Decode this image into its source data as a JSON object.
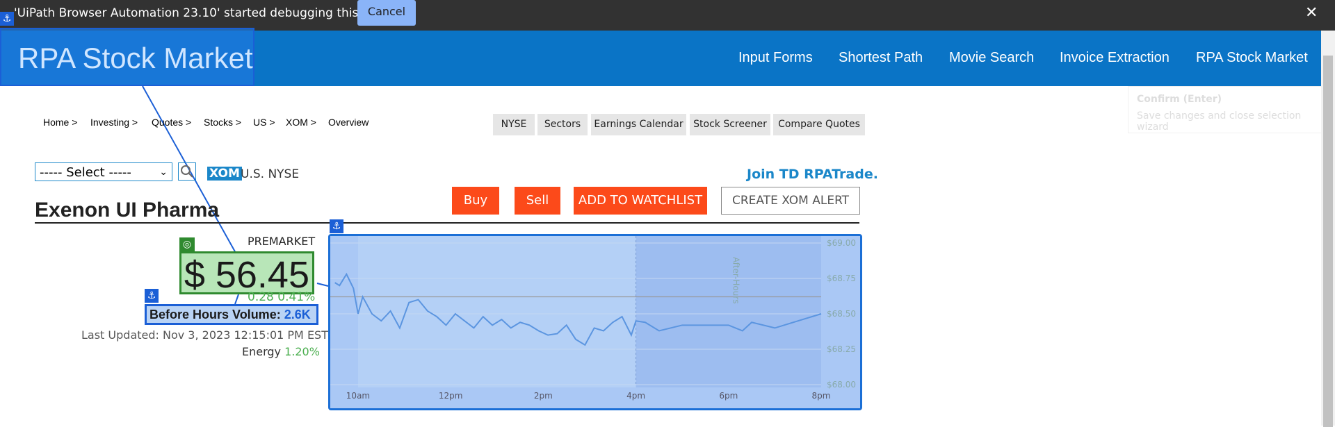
{
  "debug": {
    "message": "'UiPath Browser Automation 23.10' started debugging this browser",
    "cancel": "Cancel",
    "close": "✕"
  },
  "header": {
    "brand": "RPA Stock Market",
    "nav": [
      "Input Forms",
      "Shortest Path",
      "Movie Search",
      "Invoice Extraction",
      "RPA Stock Market"
    ]
  },
  "overlay": {
    "confirm_title": "Confirm (Enter)",
    "confirm_desc": "Save changes and close selection wizard"
  },
  "breadcrumb": [
    "Home >",
    "Investing >",
    "Quotes >",
    "Stocks >",
    "US >",
    "XOM >",
    "Overview"
  ],
  "tabs": [
    "NYSE",
    "Sectors",
    "Earnings Calendar",
    "Stock Screener",
    "Compare Quotes"
  ],
  "select": {
    "value": "----- Select -----"
  },
  "ticker": {
    "symbol": "XOM",
    "exchange": "U.S. NYSE"
  },
  "promo": "Join TD RPATrade.",
  "company": "Exenon UI Pharma",
  "actions": {
    "buy": "Buy",
    "sell": "Sell",
    "watchlist": "ADD TO WATCHLIST",
    "alert": "CREATE XOM ALERT"
  },
  "quote": {
    "session": "PREMARKET",
    "price": "$ 56.45",
    "change": "0.28 0.41%",
    "volume_label": "Before Hours Volume:",
    "volume_value": "2.6K",
    "updated": "Last Updated: Nov 3, 2023 12:15:01 PM EST",
    "sector": "Energy",
    "sector_change": "1.20%"
  },
  "colors": {
    "accent": "#0a74c6",
    "orange": "#fc4a1a",
    "green": "#4caf50",
    "highlight": "#1b5fd6"
  },
  "chart_data": {
    "type": "line",
    "x_ticks": [
      "10am",
      "12pm",
      "2pm",
      "4pm",
      "6pm",
      "8pm"
    ],
    "y_ticks": [
      "$69.00",
      "$68.75",
      "$68.50",
      "$68.25",
      "$68.00"
    ],
    "ylim": [
      68.0,
      69.0
    ],
    "annotation": "After-Hours",
    "reference_line": 68.62,
    "series": [
      {
        "x": [
          9.5,
          9.6,
          9.75,
          9.9,
          10.0,
          10.1,
          10.3,
          10.5,
          10.7,
          10.9,
          11.1,
          11.3,
          11.5,
          11.7,
          11.9,
          12.1,
          12.3,
          12.5,
          12.7,
          12.9,
          13.1,
          13.3,
          13.5,
          13.7,
          13.9,
          14.1,
          14.3,
          14.5,
          14.7,
          14.9,
          15.1,
          15.3,
          15.5,
          15.7,
          15.9,
          16.0,
          16.2,
          16.5,
          17.0,
          17.5,
          18.0,
          18.3,
          18.5,
          19.0,
          19.5,
          20.0
        ],
        "values": [
          68.72,
          68.7,
          68.78,
          68.68,
          68.5,
          68.62,
          68.5,
          68.45,
          68.52,
          68.4,
          68.58,
          68.6,
          68.52,
          68.48,
          68.42,
          68.5,
          68.45,
          68.4,
          68.48,
          68.42,
          68.46,
          68.4,
          68.44,
          68.42,
          68.38,
          68.35,
          68.36,
          68.42,
          68.32,
          68.28,
          68.4,
          68.38,
          68.44,
          68.48,
          68.35,
          68.45,
          68.44,
          68.38,
          68.42,
          68.42,
          68.42,
          68.38,
          68.44,
          68.4,
          68.45,
          68.5
        ]
      }
    ]
  }
}
